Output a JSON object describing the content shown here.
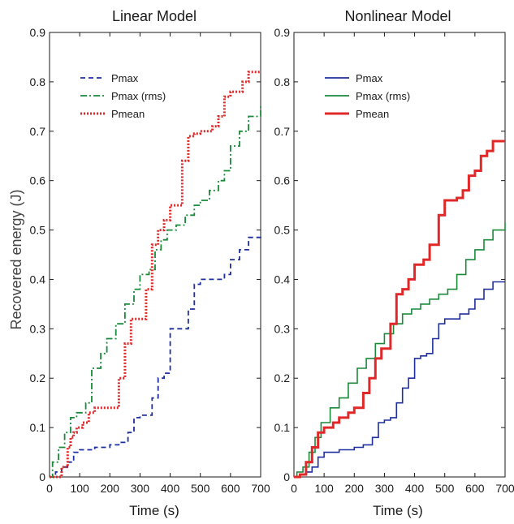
{
  "figure": {
    "ylabel": "Recovered energy (J)"
  },
  "chart_data": [
    {
      "type": "line",
      "title": "Linear Model",
      "xlabel": "Time (s)",
      "ylabel": "Recovered energy (J)",
      "xlim": [
        0,
        700
      ],
      "ylim": [
        0,
        0.9
      ],
      "xticks": [
        0,
        100,
        200,
        300,
        400,
        500,
        600,
        700
      ],
      "yticks": [
        0,
        0.1,
        0.2,
        0.3,
        0.4,
        0.5,
        0.6,
        0.7,
        0.8,
        0.9
      ],
      "tick_labels_y": [
        "0",
        "0.1",
        "0.2",
        "0.3",
        "0.4",
        "0.5",
        "0.6",
        "0.7",
        "0.8",
        "0.9"
      ],
      "tick_labels_x": [
        "0",
        "100",
        "200",
        "300",
        "400",
        "500",
        "600",
        "700"
      ],
      "grid": false,
      "legend_position": "top-left",
      "series": [
        {
          "name": "Pmax",
          "color": "#1f2f9f",
          "style": "dashed",
          "x": [
            0,
            20,
            40,
            60,
            80,
            100,
            150,
            200,
            230,
            260,
            280,
            300,
            320,
            340,
            360,
            380,
            400,
            420,
            440,
            460,
            480,
            500,
            550,
            580,
            600,
            630,
            660,
            700
          ],
          "y": [
            0,
            0.01,
            0.02,
            0.03,
            0.05,
            0.055,
            0.06,
            0.065,
            0.07,
            0.09,
            0.12,
            0.125,
            0.125,
            0.16,
            0.2,
            0.21,
            0.3,
            0.3,
            0.3,
            0.34,
            0.39,
            0.4,
            0.4,
            0.41,
            0.44,
            0.46,
            0.485,
            0.487
          ]
        },
        {
          "name": "Pmax (rms)",
          "color": "#1a8a3a",
          "style": "dashdot",
          "x": [
            0,
            10,
            30,
            50,
            70,
            90,
            120,
            140,
            170,
            190,
            220,
            250,
            280,
            300,
            330,
            350,
            370,
            390,
            420,
            450,
            480,
            500,
            530,
            560,
            580,
            600,
            630,
            660,
            700
          ],
          "y": [
            0,
            0.03,
            0.06,
            0.09,
            0.12,
            0.13,
            0.15,
            0.22,
            0.25,
            0.28,
            0.31,
            0.35,
            0.38,
            0.41,
            0.42,
            0.46,
            0.48,
            0.5,
            0.51,
            0.53,
            0.55,
            0.56,
            0.58,
            0.6,
            0.62,
            0.67,
            0.7,
            0.73,
            0.75
          ]
        },
        {
          "name": "Pmean",
          "color": "#e02828",
          "style": "dotted",
          "x": [
            0,
            30,
            40,
            60,
            70,
            80,
            90,
            110,
            130,
            150,
            200,
            230,
            250,
            270,
            300,
            320,
            340,
            360,
            380,
            400,
            420,
            440,
            460,
            480,
            500,
            540,
            560,
            580,
            600,
            620,
            640,
            660,
            700
          ],
          "y": [
            0,
            0.0,
            0.02,
            0.06,
            0.08,
            0.09,
            0.1,
            0.11,
            0.13,
            0.14,
            0.14,
            0.2,
            0.27,
            0.32,
            0.32,
            0.38,
            0.47,
            0.5,
            0.52,
            0.55,
            0.55,
            0.64,
            0.69,
            0.695,
            0.7,
            0.71,
            0.73,
            0.77,
            0.78,
            0.78,
            0.8,
            0.82,
            0.82
          ]
        }
      ]
    },
    {
      "type": "line",
      "title": "Nonlinear Model",
      "xlabel": "Time (s)",
      "ylabel": "",
      "xlim": [
        0,
        700
      ],
      "ylim": [
        0,
        0.9
      ],
      "xticks": [
        0,
        100,
        200,
        300,
        400,
        500,
        600,
        700
      ],
      "yticks": [
        0,
        0.1,
        0.2,
        0.3,
        0.4,
        0.5,
        0.6,
        0.7,
        0.8,
        0.9
      ],
      "tick_labels_y": [
        "0",
        "0.1",
        "0.2",
        "0.3",
        "0.4",
        "0.5",
        "0.6",
        "0.7",
        "0.8",
        "0.9"
      ],
      "tick_labels_x": [
        "0",
        "100",
        "200",
        "300",
        "400",
        "500",
        "600",
        "700"
      ],
      "grid": false,
      "legend_position": "top-left",
      "series": [
        {
          "name": "Pmax",
          "color": "#1f2f9f",
          "style": "solid",
          "x": [
            0,
            20,
            40,
            60,
            80,
            100,
            150,
            200,
            230,
            260,
            280,
            300,
            320,
            340,
            360,
            380,
            400,
            420,
            440,
            460,
            480,
            500,
            550,
            580,
            600,
            630,
            660,
            700
          ],
          "y": [
            0,
            0.005,
            0.01,
            0.02,
            0.04,
            0.05,
            0.055,
            0.06,
            0.065,
            0.08,
            0.11,
            0.115,
            0.12,
            0.15,
            0.18,
            0.2,
            0.24,
            0.245,
            0.25,
            0.28,
            0.31,
            0.32,
            0.33,
            0.34,
            0.36,
            0.38,
            0.395,
            0.395
          ]
        },
        {
          "name": "Pmax (rms)",
          "color": "#1a8a3a",
          "style": "solid",
          "x": [
            0,
            10,
            30,
            50,
            70,
            90,
            120,
            150,
            180,
            210,
            240,
            270,
            300,
            330,
            360,
            390,
            420,
            450,
            480,
            510,
            540,
            570,
            600,
            630,
            660,
            700
          ],
          "y": [
            0,
            0.01,
            0.02,
            0.05,
            0.08,
            0.11,
            0.14,
            0.16,
            0.19,
            0.22,
            0.24,
            0.27,
            0.29,
            0.31,
            0.33,
            0.34,
            0.35,
            0.36,
            0.37,
            0.38,
            0.41,
            0.44,
            0.46,
            0.48,
            0.5,
            0.515
          ]
        },
        {
          "name": "Pmean",
          "color": "#e02828",
          "style": "solid",
          "x": [
            0,
            20,
            40,
            60,
            80,
            100,
            130,
            150,
            180,
            200,
            230,
            250,
            270,
            290,
            300,
            320,
            340,
            360,
            380,
            400,
            430,
            450,
            480,
            500,
            540,
            560,
            580,
            600,
            620,
            640,
            660,
            700
          ],
          "y": [
            0,
            0.005,
            0.03,
            0.06,
            0.09,
            0.1,
            0.11,
            0.12,
            0.13,
            0.14,
            0.17,
            0.2,
            0.24,
            0.26,
            0.26,
            0.31,
            0.37,
            0.38,
            0.4,
            0.43,
            0.44,
            0.47,
            0.53,
            0.56,
            0.565,
            0.58,
            0.61,
            0.62,
            0.65,
            0.66,
            0.68,
            0.68
          ]
        }
      ]
    }
  ]
}
